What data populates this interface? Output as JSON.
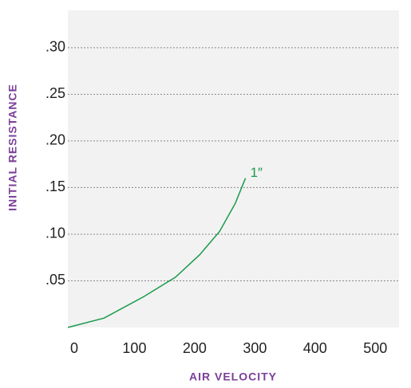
{
  "chart_data": {
    "type": "line",
    "xlabel": "AIR VELOCITY",
    "ylabel": "INITIAL RESISTANCE",
    "x": [
      0,
      60,
      126,
      179,
      219,
      252,
      278,
      295
    ],
    "series": [
      {
        "name": "1″",
        "color": "#1a9a4a",
        "values": [
          0,
          0.01,
          0.033,
          0.054,
          0.078,
          0.103,
          0.133,
          0.16
        ]
      }
    ],
    "xlim": [
      0,
      550
    ],
    "xticks": [
      0,
      100,
      200,
      300,
      400,
      500
    ],
    "ylim": [
      0,
      0.34
    ],
    "yticks": [
      {
        "value": 0.05,
        "label": ".05"
      },
      {
        "value": 0.1,
        "label": ".10"
      },
      {
        "value": 0.15,
        "label": ".15"
      },
      {
        "value": 0.2,
        "label": ".20"
      },
      {
        "value": 0.25,
        "label": ".25"
      },
      {
        "value": 0.3,
        "label": ".30"
      }
    ],
    "grid": true
  }
}
